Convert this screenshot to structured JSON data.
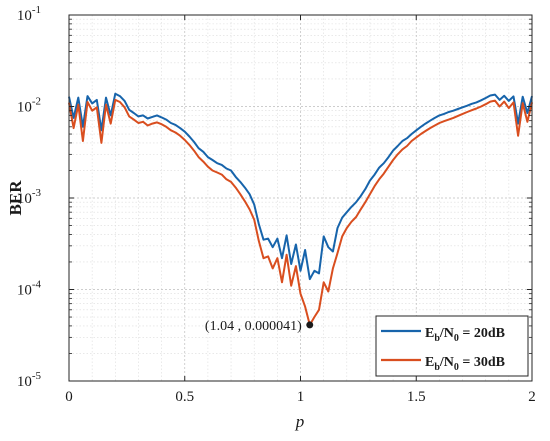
{
  "chart_data": {
    "type": "line",
    "xlabel": "p",
    "ylabel": "BER",
    "yscale": "log",
    "xlim": [
      0,
      2
    ],
    "ylim": [
      1e-05,
      0.1
    ],
    "grid": true,
    "legend_position": "bottom-right",
    "x_ticks": [
      "0",
      "0.5",
      "1",
      "1.5",
      "2"
    ],
    "y_ticks": [
      {
        "base": "10",
        "exp": "-5"
      },
      {
        "base": "10",
        "exp": "-4"
      },
      {
        "base": "10",
        "exp": "-3"
      },
      {
        "base": "10",
        "exp": "-2"
      },
      {
        "base": "10",
        "exp": "-1"
      }
    ],
    "x": [
      0.0,
      0.02,
      0.04,
      0.06,
      0.08,
      0.1,
      0.12,
      0.14,
      0.16,
      0.18,
      0.2,
      0.22,
      0.24,
      0.26,
      0.28,
      0.3,
      0.32,
      0.34,
      0.36,
      0.38,
      0.4,
      0.42,
      0.44,
      0.46,
      0.48,
      0.5,
      0.52,
      0.54,
      0.56,
      0.58,
      0.6,
      0.62,
      0.64,
      0.66,
      0.68,
      0.7,
      0.72,
      0.74,
      0.76,
      0.78,
      0.8,
      0.82,
      0.84,
      0.86,
      0.88,
      0.9,
      0.92,
      0.94,
      0.96,
      0.98,
      1.0,
      1.02,
      1.04,
      1.06,
      1.08,
      1.1,
      1.12,
      1.14,
      1.16,
      1.18,
      1.2,
      1.22,
      1.24,
      1.26,
      1.28,
      1.3,
      1.32,
      1.34,
      1.36,
      1.38,
      1.4,
      1.42,
      1.44,
      1.46,
      1.48,
      1.5,
      1.52,
      1.54,
      1.56,
      1.58,
      1.6,
      1.62,
      1.64,
      1.66,
      1.68,
      1.7,
      1.72,
      1.74,
      1.76,
      1.78,
      1.8,
      1.82,
      1.84,
      1.86,
      1.88,
      1.9,
      1.92,
      1.94,
      1.96,
      1.98,
      2.0
    ],
    "series": [
      {
        "name": {
          "pre": "E",
          "sub1": "b",
          "mid": "/N",
          "sub2": "0",
          "post": " = 20dB"
        },
        "color": "#1764ab",
        "values": [
          0.0128,
          0.0075,
          0.0125,
          0.006,
          0.013,
          0.0108,
          0.0118,
          0.0055,
          0.0125,
          0.008,
          0.0138,
          0.013,
          0.0115,
          0.0092,
          0.0085,
          0.0078,
          0.008,
          0.0074,
          0.0077,
          0.008,
          0.0076,
          0.0072,
          0.0066,
          0.0063,
          0.0058,
          0.0053,
          0.0047,
          0.0041,
          0.0035,
          0.0032,
          0.0028,
          0.0026,
          0.0024,
          0.0023,
          0.0021,
          0.002,
          0.0017,
          0.0015,
          0.0013,
          0.0011,
          0.00085,
          0.00052,
          0.00035,
          0.00036,
          0.00029,
          0.00036,
          0.00022,
          0.00039,
          0.00019,
          0.00031,
          0.00016,
          0.00027,
          0.00013,
          0.00016,
          0.00015,
          0.00038,
          0.00029,
          0.00026,
          0.00047,
          0.00061,
          0.0007,
          0.0008,
          0.0009,
          0.00105,
          0.00125,
          0.00155,
          0.0018,
          0.00215,
          0.0024,
          0.0028,
          0.0033,
          0.0037,
          0.0042,
          0.0045,
          0.005,
          0.0055,
          0.006,
          0.0065,
          0.007,
          0.0075,
          0.008,
          0.0083,
          0.0087,
          0.009,
          0.0094,
          0.0098,
          0.0102,
          0.0107,
          0.0111,
          0.0117,
          0.0124,
          0.0132,
          0.0135,
          0.0118,
          0.0131,
          0.0115,
          0.0129,
          0.0065,
          0.0128,
          0.0085,
          0.013
        ]
      },
      {
        "name": {
          "pre": "E",
          "sub1": "b",
          "mid": "/N",
          "sub2": "0",
          "post": " = 30dB"
        },
        "color": "#d94e1f",
        "values": [
          0.011,
          0.0058,
          0.0105,
          0.0042,
          0.0112,
          0.009,
          0.0098,
          0.004,
          0.0105,
          0.0065,
          0.0118,
          0.0112,
          0.0098,
          0.0078,
          0.0072,
          0.0066,
          0.0068,
          0.0062,
          0.0065,
          0.0067,
          0.0064,
          0.006,
          0.0055,
          0.0052,
          0.0048,
          0.0043,
          0.0038,
          0.0033,
          0.0028,
          0.0025,
          0.0022,
          0.002,
          0.0019,
          0.0018,
          0.0016,
          0.0015,
          0.0013,
          0.0011,
          0.00092,
          0.00075,
          0.00058,
          0.00034,
          0.00022,
          0.00023,
          0.00017,
          0.00022,
          0.00012,
          0.00024,
          0.00011,
          0.00018,
          9e-05,
          6.5e-05,
          4.1e-05,
          5e-05,
          6e-05,
          0.00012,
          9.5e-05,
          0.00017,
          0.00025,
          0.00038,
          0.00047,
          0.00055,
          0.00062,
          0.00075,
          0.0009,
          0.0011,
          0.00135,
          0.0016,
          0.00185,
          0.0022,
          0.0026,
          0.003,
          0.0034,
          0.0037,
          0.0042,
          0.0046,
          0.005,
          0.0054,
          0.0058,
          0.0062,
          0.0066,
          0.0069,
          0.0072,
          0.0075,
          0.0079,
          0.0083,
          0.0087,
          0.0091,
          0.0095,
          0.01,
          0.0106,
          0.0113,
          0.0116,
          0.01,
          0.0113,
          0.0096,
          0.0111,
          0.0048,
          0.0109,
          0.0068,
          0.0111
        ]
      }
    ],
    "annotation": {
      "text": "(1.04 , 0.000041)",
      "x": 1.04,
      "y": 4.1e-05
    }
  }
}
